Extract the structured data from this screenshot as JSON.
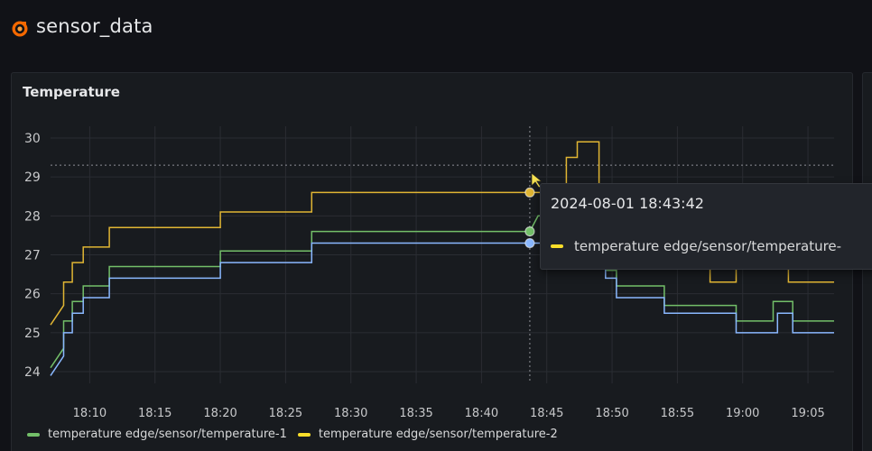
{
  "dashboard": {
    "title": "sensor_data"
  },
  "panel": {
    "title": "Temperature"
  },
  "tooltip": {
    "time": "2024-08-01 18:43:42",
    "series_label": "temperature edge/sensor/temperature-"
  },
  "legend": [
    {
      "label": "temperature edge/sensor/temperature-1",
      "color": "#73bf69"
    },
    {
      "label": "temperature edge/sensor/temperature-2",
      "color": "#fade2a"
    }
  ],
  "colors": {
    "series1": "#73bf69",
    "series2": "#e0b533",
    "series3": "#8ab8ff",
    "accent": "#f46800"
  },
  "chart_data": {
    "type": "line",
    "title": "Temperature",
    "x_ticks": [
      "18:10",
      "18:15",
      "18:20",
      "18:25",
      "18:30",
      "18:35",
      "18:40",
      "18:45",
      "18:50",
      "18:55",
      "19:00",
      "19:05"
    ],
    "y_ticks": [
      24,
      25,
      26,
      27,
      28,
      29,
      30
    ],
    "ylim": [
      23.7,
      30.3
    ],
    "xlim": [
      "18:07:00",
      "19:07:00"
    ],
    "grid": true,
    "crosshair": {
      "x": "18:43:42",
      "y": 29.3
    },
    "series": [
      {
        "name": "temperature edge/sensor/temperature-1",
        "color": "#73bf69",
        "points": [
          [
            "18:07:00",
            24.1
          ],
          [
            "18:08:00",
            24.6
          ],
          [
            "18:08:00",
            25.3
          ],
          [
            "18:08:40",
            25.3
          ],
          [
            "18:08:40",
            25.8
          ],
          [
            "18:09:30",
            25.8
          ],
          [
            "18:09:30",
            26.2
          ],
          [
            "18:11:30",
            26.2
          ],
          [
            "18:11:30",
            26.7
          ],
          [
            "18:20:00",
            26.7
          ],
          [
            "18:20:00",
            27.1
          ],
          [
            "18:27:00",
            27.1
          ],
          [
            "18:27:00",
            27.6
          ],
          [
            "18:43:42",
            27.6
          ],
          [
            "18:44:20",
            28.0
          ],
          [
            "18:49:30",
            28.0
          ],
          [
            "18:49:30",
            26.6
          ],
          [
            "18:50:20",
            26.6
          ],
          [
            "18:50:20",
            26.2
          ],
          [
            "18:54:00",
            26.2
          ],
          [
            "18:54:00",
            25.7
          ],
          [
            "18:59:30",
            25.7
          ],
          [
            "18:59:30",
            25.3
          ],
          [
            "19:02:20",
            25.3
          ],
          [
            "19:02:20",
            25.8
          ],
          [
            "19:03:50",
            25.8
          ],
          [
            "19:03:50",
            25.3
          ],
          [
            "19:07:00",
            25.3
          ]
        ]
      },
      {
        "name": "temperature edge/sensor/temperature-2",
        "color": "#e0b533",
        "points": [
          [
            "18:07:00",
            25.2
          ],
          [
            "18:08:00",
            25.7
          ],
          [
            "18:08:00",
            26.3
          ],
          [
            "18:08:40",
            26.3
          ],
          [
            "18:08:40",
            26.8
          ],
          [
            "18:09:30",
            26.8
          ],
          [
            "18:09:30",
            27.2
          ],
          [
            "18:11:30",
            27.2
          ],
          [
            "18:11:30",
            27.7
          ],
          [
            "18:20:00",
            27.7
          ],
          [
            "18:20:00",
            28.1
          ],
          [
            "18:27:00",
            28.1
          ],
          [
            "18:27:00",
            28.6
          ],
          [
            "18:43:42",
            28.6
          ],
          [
            "18:46:30",
            28.6
          ],
          [
            "18:46:30",
            29.5
          ],
          [
            "18:47:20",
            29.5
          ],
          [
            "18:47:20",
            29.9
          ],
          [
            "18:49:00",
            29.9
          ],
          [
            "18:49:00",
            28.2
          ],
          [
            "18:57:30",
            28.2
          ],
          [
            "18:57:30",
            26.3
          ],
          [
            "18:59:30",
            26.3
          ],
          [
            "18:59:30",
            27.2
          ],
          [
            "19:03:30",
            27.2
          ],
          [
            "19:03:30",
            26.3
          ],
          [
            "19:07:00",
            26.3
          ]
        ]
      },
      {
        "name": "",
        "color": "#8ab8ff",
        "points": [
          [
            "18:07:00",
            23.9
          ],
          [
            "18:08:00",
            24.4
          ],
          [
            "18:08:00",
            25.0
          ],
          [
            "18:08:40",
            25.0
          ],
          [
            "18:08:40",
            25.5
          ],
          [
            "18:09:30",
            25.5
          ],
          [
            "18:09:30",
            25.9
          ],
          [
            "18:11:30",
            25.9
          ],
          [
            "18:11:30",
            26.4
          ],
          [
            "18:20:00",
            26.4
          ],
          [
            "18:20:00",
            26.8
          ],
          [
            "18:27:00",
            26.8
          ],
          [
            "18:27:00",
            27.3
          ],
          [
            "18:43:42",
            27.3
          ],
          [
            "18:49:30",
            27.3
          ],
          [
            "18:49:30",
            26.4
          ],
          [
            "18:50:20",
            26.4
          ],
          [
            "18:50:20",
            25.9
          ],
          [
            "18:54:00",
            25.9
          ],
          [
            "18:54:00",
            25.5
          ],
          [
            "18:59:30",
            25.5
          ],
          [
            "18:59:30",
            25.0
          ],
          [
            "19:02:40",
            25.0
          ],
          [
            "19:02:40",
            25.5
          ],
          [
            "19:03:50",
            25.5
          ],
          [
            "19:03:50",
            25.0
          ],
          [
            "19:07:00",
            25.0
          ]
        ]
      }
    ]
  }
}
